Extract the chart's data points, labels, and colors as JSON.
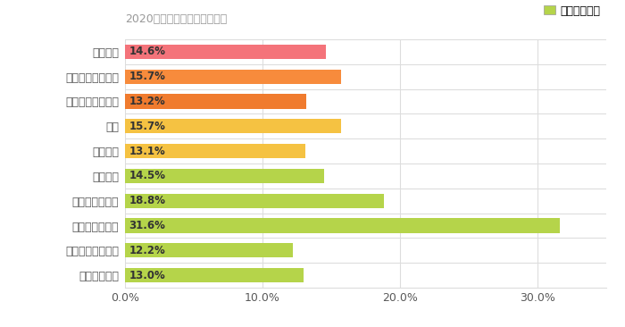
{
  "subtitle": "2020年１月応募分からの集計",
  "legend_label": "平均当選確率",
  "categories": [
    "応募全体",
    "ネットクローズド",
    "ハガキクローズド",
    "協㛃",
    "全国懸㛃",
    "スーパー",
    "ドラッグストア",
    "ホームセンター",
    "コンビニ・専門店",
    "メーカー主催"
  ],
  "values": [
    14.6,
    15.7,
    13.2,
    15.7,
    13.1,
    14.5,
    18.8,
    31.6,
    12.2,
    13.0
  ],
  "bar_colors": [
    "#F4737A",
    "#F78B3C",
    "#F07B2E",
    "#F5C242",
    "#F5C242",
    "#B5D44A",
    "#B5D44A",
    "#B5D44A",
    "#B5D44A",
    "#B5D44A"
  ],
  "label_color": "#5A5A5A",
  "bg_color": "#FFFFFF",
  "grid_color": "#DDDDDD",
  "xlim": [
    0,
    35
  ],
  "xtick_vals": [
    0,
    10,
    20,
    30
  ],
  "bar_height": 0.58,
  "subtitle_fontsize": 9,
  "label_fontsize": 9,
  "tick_fontsize": 9,
  "value_fontsize": 8.5
}
